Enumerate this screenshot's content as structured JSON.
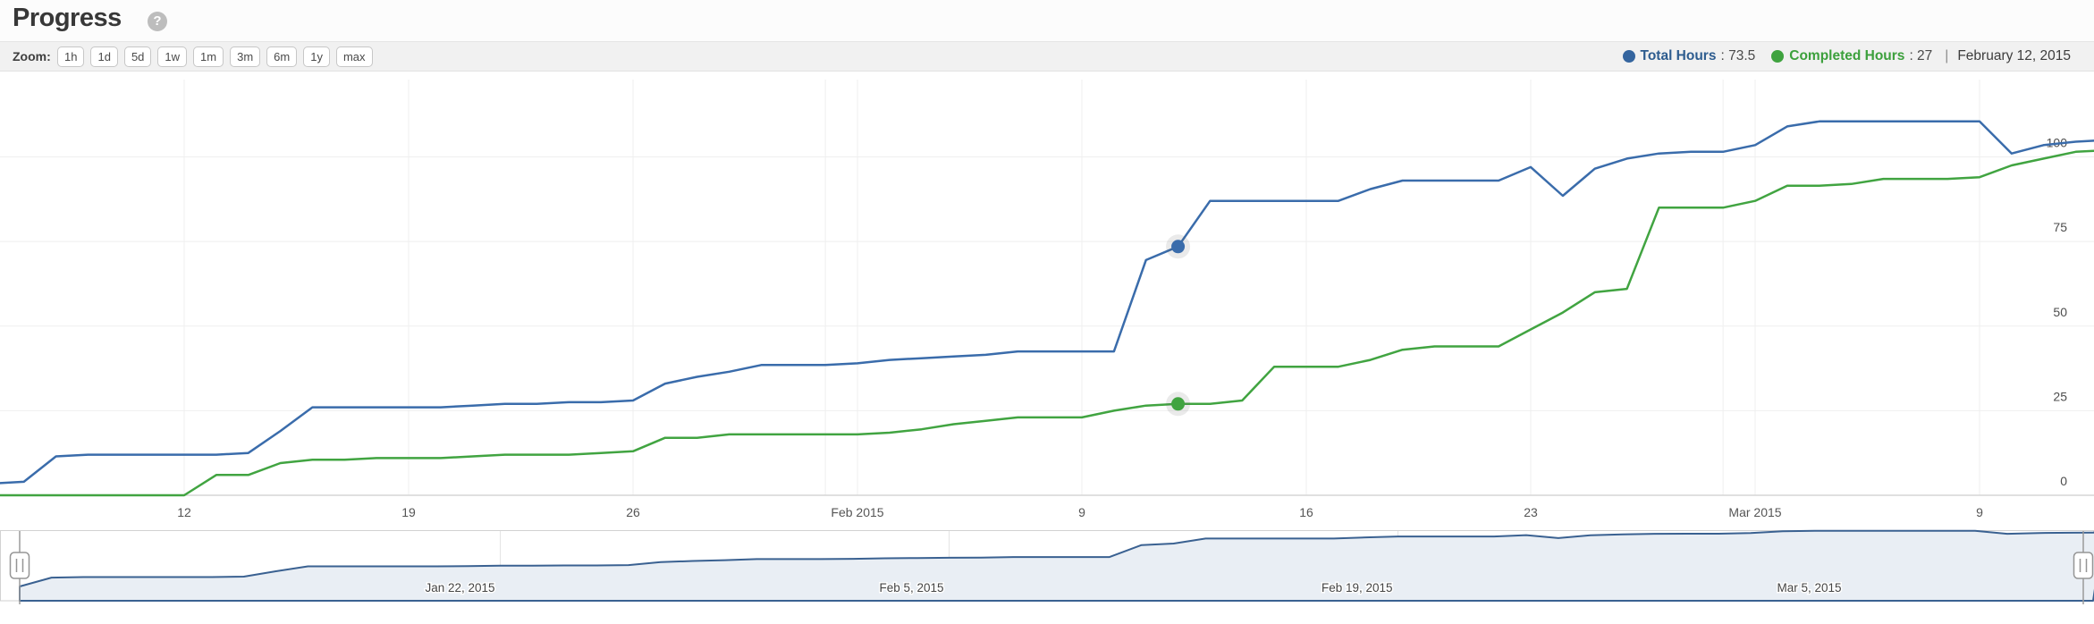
{
  "header": {
    "title": "Progress",
    "help_glyph": "?"
  },
  "toolbar": {
    "zoom_label": "Zoom:",
    "range_buttons": [
      "1h",
      "1d",
      "5d",
      "1w",
      "1m",
      "3m",
      "6m",
      "1y",
      "max"
    ]
  },
  "legend": {
    "total": {
      "name": "Total Hours",
      "value_text": ": 73.5",
      "color": "#35659f",
      "text_color": "#2d5c8f"
    },
    "completed": {
      "name": "Completed Hours",
      "value_text": ": 27",
      "color": "#3fa33f",
      "text_color": "#3ca03c"
    },
    "separator": "|",
    "date": "February 12, 2015"
  },
  "chart_data": {
    "type": "line",
    "title": "Progress",
    "grid": true,
    "legend_position": "top-right",
    "yaxis": {
      "ticks": [
        0,
        25,
        50,
        75,
        100
      ],
      "side": "right",
      "range_px_note": "values are hours, series exceed 100"
    },
    "xaxis": {
      "ticks": [
        {
          "d": "2015-01-12",
          "label": "12"
        },
        {
          "d": "2015-01-19",
          "label": "19"
        },
        {
          "d": "2015-01-26",
          "label": "26"
        },
        {
          "d": "2015-02-02",
          "label": "Feb 2015"
        },
        {
          "d": "2015-02-09",
          "label": "9"
        },
        {
          "d": "2015-02-16",
          "label": "16"
        },
        {
          "d": "2015-02-23",
          "label": "23"
        },
        {
          "d": "2015-03-02",
          "label": "Mar 2015"
        },
        {
          "d": "2015-03-09",
          "label": "9"
        }
      ],
      "month_lines": [
        "2015-02-01",
        "2015-03-01"
      ]
    },
    "hover_point": {
      "date": "2015-02-12",
      "total": 73.5,
      "completed": 27
    },
    "series": [
      {
        "name": "Total Hours",
        "color": "#3a6cab",
        "points": [
          [
            "2015-01-06",
            3.5
          ],
          [
            "2015-01-07",
            4
          ],
          [
            "2015-01-08",
            11.5
          ],
          [
            "2015-01-09",
            12
          ],
          [
            "2015-01-10",
            12
          ],
          [
            "2015-01-11",
            12
          ],
          [
            "2015-01-12",
            12
          ],
          [
            "2015-01-13",
            12
          ],
          [
            "2015-01-14",
            12.5
          ],
          [
            "2015-01-15",
            19
          ],
          [
            "2015-01-16",
            26
          ],
          [
            "2015-01-17",
            26
          ],
          [
            "2015-01-18",
            26
          ],
          [
            "2015-01-19",
            26
          ],
          [
            "2015-01-20",
            26
          ],
          [
            "2015-01-21",
            26.5
          ],
          [
            "2015-01-22",
            27
          ],
          [
            "2015-01-23",
            27
          ],
          [
            "2015-01-24",
            27.5
          ],
          [
            "2015-01-25",
            27.5
          ],
          [
            "2015-01-26",
            28
          ],
          [
            "2015-01-27",
            33
          ],
          [
            "2015-01-28",
            35
          ],
          [
            "2015-01-29",
            36.5
          ],
          [
            "2015-01-30",
            38.5
          ],
          [
            "2015-01-31",
            38.5
          ],
          [
            "2015-02-01",
            38.5
          ],
          [
            "2015-02-02",
            39
          ],
          [
            "2015-02-03",
            40
          ],
          [
            "2015-02-04",
            40.5
          ],
          [
            "2015-02-05",
            41
          ],
          [
            "2015-02-06",
            41.5
          ],
          [
            "2015-02-07",
            42.5
          ],
          [
            "2015-02-08",
            42.5
          ],
          [
            "2015-02-09",
            42.5
          ],
          [
            "2015-02-10",
            42.5
          ],
          [
            "2015-02-11",
            69.5
          ],
          [
            "2015-02-12",
            73.5
          ],
          [
            "2015-02-13",
            87
          ],
          [
            "2015-02-14",
            87
          ],
          [
            "2015-02-15",
            87
          ],
          [
            "2015-02-16",
            87
          ],
          [
            "2015-02-17",
            87
          ],
          [
            "2015-02-18",
            90.5
          ],
          [
            "2015-02-19",
            93
          ],
          [
            "2015-02-20",
            93
          ],
          [
            "2015-02-21",
            93
          ],
          [
            "2015-02-22",
            93
          ],
          [
            "2015-02-23",
            97
          ],
          [
            "2015-02-24",
            88.5
          ],
          [
            "2015-02-25",
            96.5
          ],
          [
            "2015-02-26",
            99.5
          ],
          [
            "2015-02-27",
            101
          ],
          [
            "2015-02-28",
            101.5
          ],
          [
            "2015-03-01",
            101.5
          ],
          [
            "2015-03-02",
            103.5
          ],
          [
            "2015-03-03",
            109
          ],
          [
            "2015-03-04",
            110.5
          ],
          [
            "2015-03-05",
            110.5
          ],
          [
            "2015-03-06",
            110.5
          ],
          [
            "2015-03-07",
            110.5
          ],
          [
            "2015-03-08",
            110.5
          ],
          [
            "2015-03-09",
            110.5
          ],
          [
            "2015-03-10",
            101
          ],
          [
            "2015-03-11",
            103.5
          ],
          [
            "2015-03-12",
            104.5
          ],
          [
            "2015-03-13",
            105
          ]
        ]
      },
      {
        "name": "Completed Hours",
        "color": "#41a441",
        "points": [
          [
            "2015-01-06",
            0
          ],
          [
            "2015-01-07",
            0
          ],
          [
            "2015-01-08",
            0
          ],
          [
            "2015-01-09",
            0
          ],
          [
            "2015-01-10",
            0
          ],
          [
            "2015-01-11",
            0
          ],
          [
            "2015-01-12",
            0
          ],
          [
            "2015-01-13",
            6
          ],
          [
            "2015-01-14",
            6
          ],
          [
            "2015-01-15",
            9.5
          ],
          [
            "2015-01-16",
            10.5
          ],
          [
            "2015-01-17",
            10.5
          ],
          [
            "2015-01-18",
            11
          ],
          [
            "2015-01-19",
            11
          ],
          [
            "2015-01-20",
            11
          ],
          [
            "2015-01-21",
            11.5
          ],
          [
            "2015-01-22",
            12
          ],
          [
            "2015-01-23",
            12
          ],
          [
            "2015-01-24",
            12
          ],
          [
            "2015-01-25",
            12.5
          ],
          [
            "2015-01-26",
            13
          ],
          [
            "2015-01-27",
            17
          ],
          [
            "2015-01-28",
            17
          ],
          [
            "2015-01-29",
            18
          ],
          [
            "2015-01-30",
            18
          ],
          [
            "2015-01-31",
            18
          ],
          [
            "2015-02-01",
            18
          ],
          [
            "2015-02-02",
            18
          ],
          [
            "2015-02-03",
            18.5
          ],
          [
            "2015-02-04",
            19.5
          ],
          [
            "2015-02-05",
            21
          ],
          [
            "2015-02-06",
            22
          ],
          [
            "2015-02-07",
            23
          ],
          [
            "2015-02-08",
            23
          ],
          [
            "2015-02-09",
            23
          ],
          [
            "2015-02-10",
            25
          ],
          [
            "2015-02-11",
            26.5
          ],
          [
            "2015-02-12",
            27
          ],
          [
            "2015-02-13",
            27
          ],
          [
            "2015-02-14",
            28
          ],
          [
            "2015-02-15",
            38
          ],
          [
            "2015-02-16",
            38
          ],
          [
            "2015-02-17",
            38
          ],
          [
            "2015-02-18",
            40
          ],
          [
            "2015-02-19",
            43
          ],
          [
            "2015-02-20",
            44
          ],
          [
            "2015-02-21",
            44
          ],
          [
            "2015-02-22",
            44
          ],
          [
            "2015-02-23",
            49
          ],
          [
            "2015-02-24",
            54
          ],
          [
            "2015-02-25",
            60
          ],
          [
            "2015-02-26",
            61
          ],
          [
            "2015-02-27",
            85
          ],
          [
            "2015-02-28",
            85
          ],
          [
            "2015-03-01",
            85
          ],
          [
            "2015-03-02",
            87
          ],
          [
            "2015-03-03",
            91.5
          ],
          [
            "2015-03-04",
            91.5
          ],
          [
            "2015-03-05",
            92
          ],
          [
            "2015-03-06",
            93.5
          ],
          [
            "2015-03-07",
            93.5
          ],
          [
            "2015-03-08",
            93.5
          ],
          [
            "2015-03-09",
            94
          ],
          [
            "2015-03-10",
            97.5
          ],
          [
            "2015-03-11",
            99.5
          ],
          [
            "2015-03-12",
            101.5
          ],
          [
            "2015-03-13",
            102
          ]
        ]
      }
    ],
    "navigator": {
      "ticks": [
        {
          "d": "2015-01-22",
          "label": "Jan 22, 2015"
        },
        {
          "d": "2015-02-05",
          "label": "Feb 5, 2015"
        },
        {
          "d": "2015-02-19",
          "label": "Feb 19, 2015"
        },
        {
          "d": "2015-03-05",
          "label": "Mar 5, 2015"
        }
      ],
      "area_fill": "#e9eef4",
      "line_color": "#3a6191"
    },
    "colors": {
      "grid": "#efefef",
      "axis_line": "#d6d6d6",
      "tick_text": "#555555",
      "ytick_text": "#4d4d4d"
    }
  }
}
